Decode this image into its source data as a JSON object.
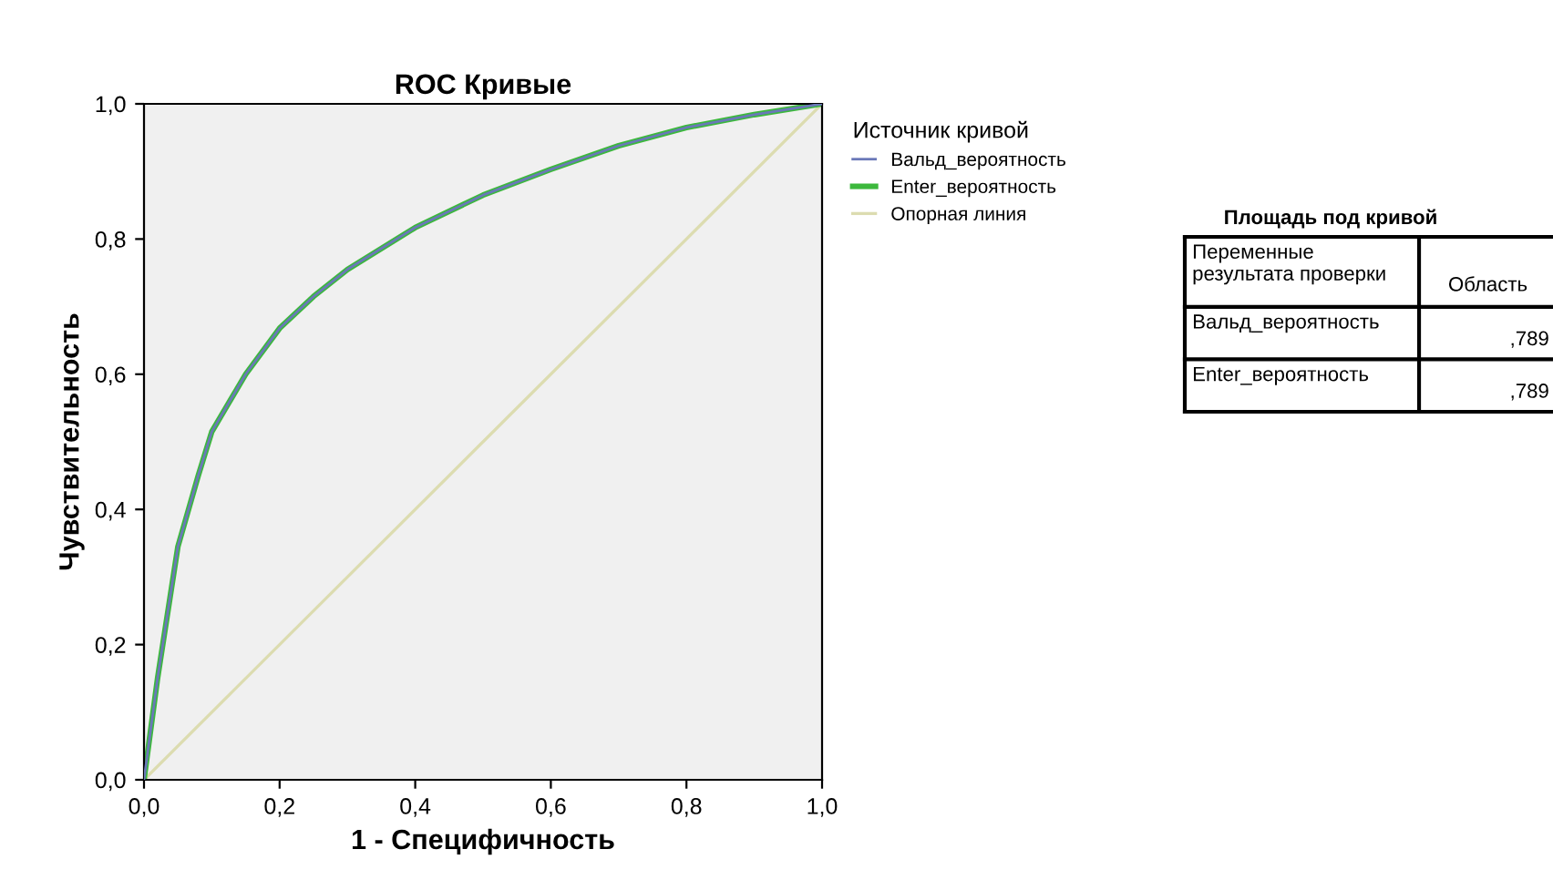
{
  "chart_data": {
    "type": "line",
    "title": "ROC Кривые",
    "xlabel": "1 - Специфичность",
    "ylabel": "Чувствительность",
    "legend_title": "Источник кривой",
    "legend": "top right",
    "grid": false,
    "marker": "none",
    "line_style": "solid",
    "xlim": [
      0,
      1
    ],
    "ylim": [
      0,
      1
    ],
    "xticks": [
      {
        "value": 0,
        "label": "0,0"
      },
      {
        "value": 0.2,
        "label": "0,2"
      },
      {
        "value": 0.4,
        "label": "0,4"
      },
      {
        "value": 0.6,
        "label": "0,6"
      },
      {
        "value": 0.8,
        "label": "0,8"
      },
      {
        "value": 1,
        "label": "1,0"
      }
    ],
    "yticks": [
      {
        "value": 0,
        "label": "0,0"
      },
      {
        "value": 0.2,
        "label": "0,2"
      },
      {
        "value": 0.4,
        "label": "0,4"
      },
      {
        "value": 0.6,
        "label": "0,6"
      },
      {
        "value": 0.8,
        "label": "0,8"
      },
      {
        "value": 1,
        "label": "1,0"
      }
    ],
    "series": [
      {
        "name": "Вальд_вероятность",
        "color": "#6a78b8",
        "x": [
          0,
          0.02,
          0.05,
          0.08,
          0.1,
          0.15,
          0.2,
          0.25,
          0.3,
          0.4,
          0.5,
          0.6,
          0.7,
          0.8,
          0.9,
          1
        ],
        "values": [
          0,
          0.15,
          0.345,
          0.45,
          0.515,
          0.6,
          0.668,
          0.715,
          0.755,
          0.817,
          0.865,
          0.903,
          0.938,
          0.965,
          0.984,
          1
        ]
      },
      {
        "name": "Enter_вероятность",
        "color": "#3cb83c",
        "x": [
          0,
          0.02,
          0.05,
          0.08,
          0.1,
          0.15,
          0.2,
          0.25,
          0.3,
          0.4,
          0.5,
          0.6,
          0.7,
          0.8,
          0.9,
          1
        ],
        "values": [
          0,
          0.15,
          0.345,
          0.45,
          0.515,
          0.6,
          0.668,
          0.715,
          0.755,
          0.817,
          0.865,
          0.903,
          0.938,
          0.965,
          0.984,
          1
        ]
      },
      {
        "name": "Опорная линия",
        "color": "#dcdcb0",
        "x": [
          0,
          1
        ],
        "values": [
          0,
          1
        ]
      }
    ],
    "annotations": [
      "Площадь под кривой",
      "Переменные результата проверки",
      "Область",
      "Вальд_вероятность",
      ",789",
      "Enter_вероятность",
      ",789"
    ]
  }
}
